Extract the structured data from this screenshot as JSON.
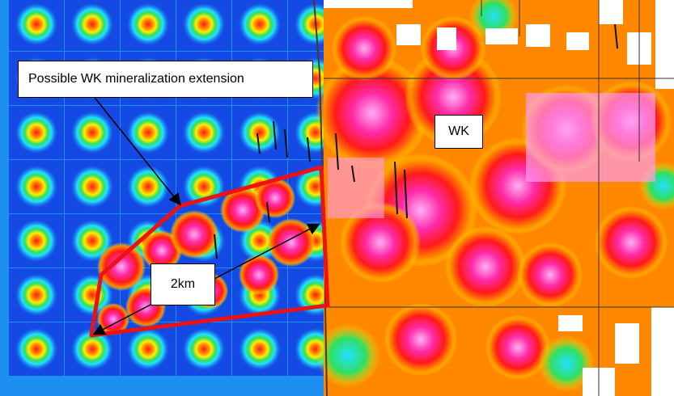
{
  "labels": {
    "extension": "Possible WK mineralization extension",
    "deposit": "WK",
    "scale": "2km"
  },
  "colors": {
    "low_background": "#1c8ff0",
    "low_deep": "#1010d8",
    "anomaly_ring_cyan": "#22e0ff",
    "anomaly_ring_green": "#30e060",
    "anomaly_yellow": "#ffee00",
    "anomaly_orange": "#ff8800",
    "anomaly_red": "#ff1a1a",
    "anomaly_magenta": "#ff2aa8",
    "anomaly_pink": "#ff9cf0",
    "outline": "#ee1111",
    "boundary": "#553322"
  },
  "icons": {
    "arrow": "black-arrow",
    "drill_trace": "drillhole-trace-icon"
  }
}
